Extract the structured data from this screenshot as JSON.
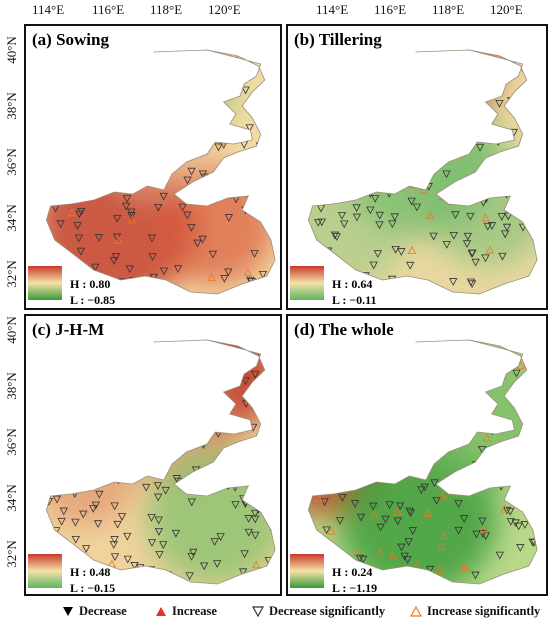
{
  "axes": {
    "lon_labels": [
      "114°E",
      "116°E",
      "118°E",
      "120°E"
    ],
    "lat_labels": [
      "40°N",
      "38°N",
      "36°N",
      "34°N",
      "32°N"
    ]
  },
  "panels": [
    {
      "id": "a",
      "title": "(a) Sowing",
      "high": "H : 0.80",
      "low": "L : −0.85",
      "high_color": "#c8392b",
      "low_color": "#3a9a3a",
      "bg_base": "#f3dca4"
    },
    {
      "id": "b",
      "title": "(b) Tillering",
      "high": "H : 0.64",
      "low": "L : −0.11",
      "high_color": "#c8392b",
      "low_color": "#5fb55f",
      "bg_base": "#e8d7a0"
    },
    {
      "id": "c",
      "title": "(c) J-H-M",
      "high": "H : 0.48",
      "low": "L : −0.15",
      "high_color": "#c8392b",
      "low_color": "#5fb55f",
      "bg_base": "#f0d39c"
    },
    {
      "id": "d",
      "title": "(d) The whole",
      "high": "H : 0.24",
      "low": "L : −1.19",
      "high_color": "#c8392b",
      "low_color": "#3a9a3a",
      "bg_base": "#b9d98a"
    }
  ],
  "legend": [
    {
      "label": "Decrease",
      "symbol": "tri-down-filled",
      "color": "#000000"
    },
    {
      "label": "Increase",
      "symbol": "tri-up-filled",
      "color": "#e53222"
    },
    {
      "label": "Decrease significantly",
      "symbol": "tri-down-open",
      "color": "#333333"
    },
    {
      "label": "Increase significantly",
      "symbol": "tri-up-open",
      "color": "#e8782a"
    }
  ]
}
